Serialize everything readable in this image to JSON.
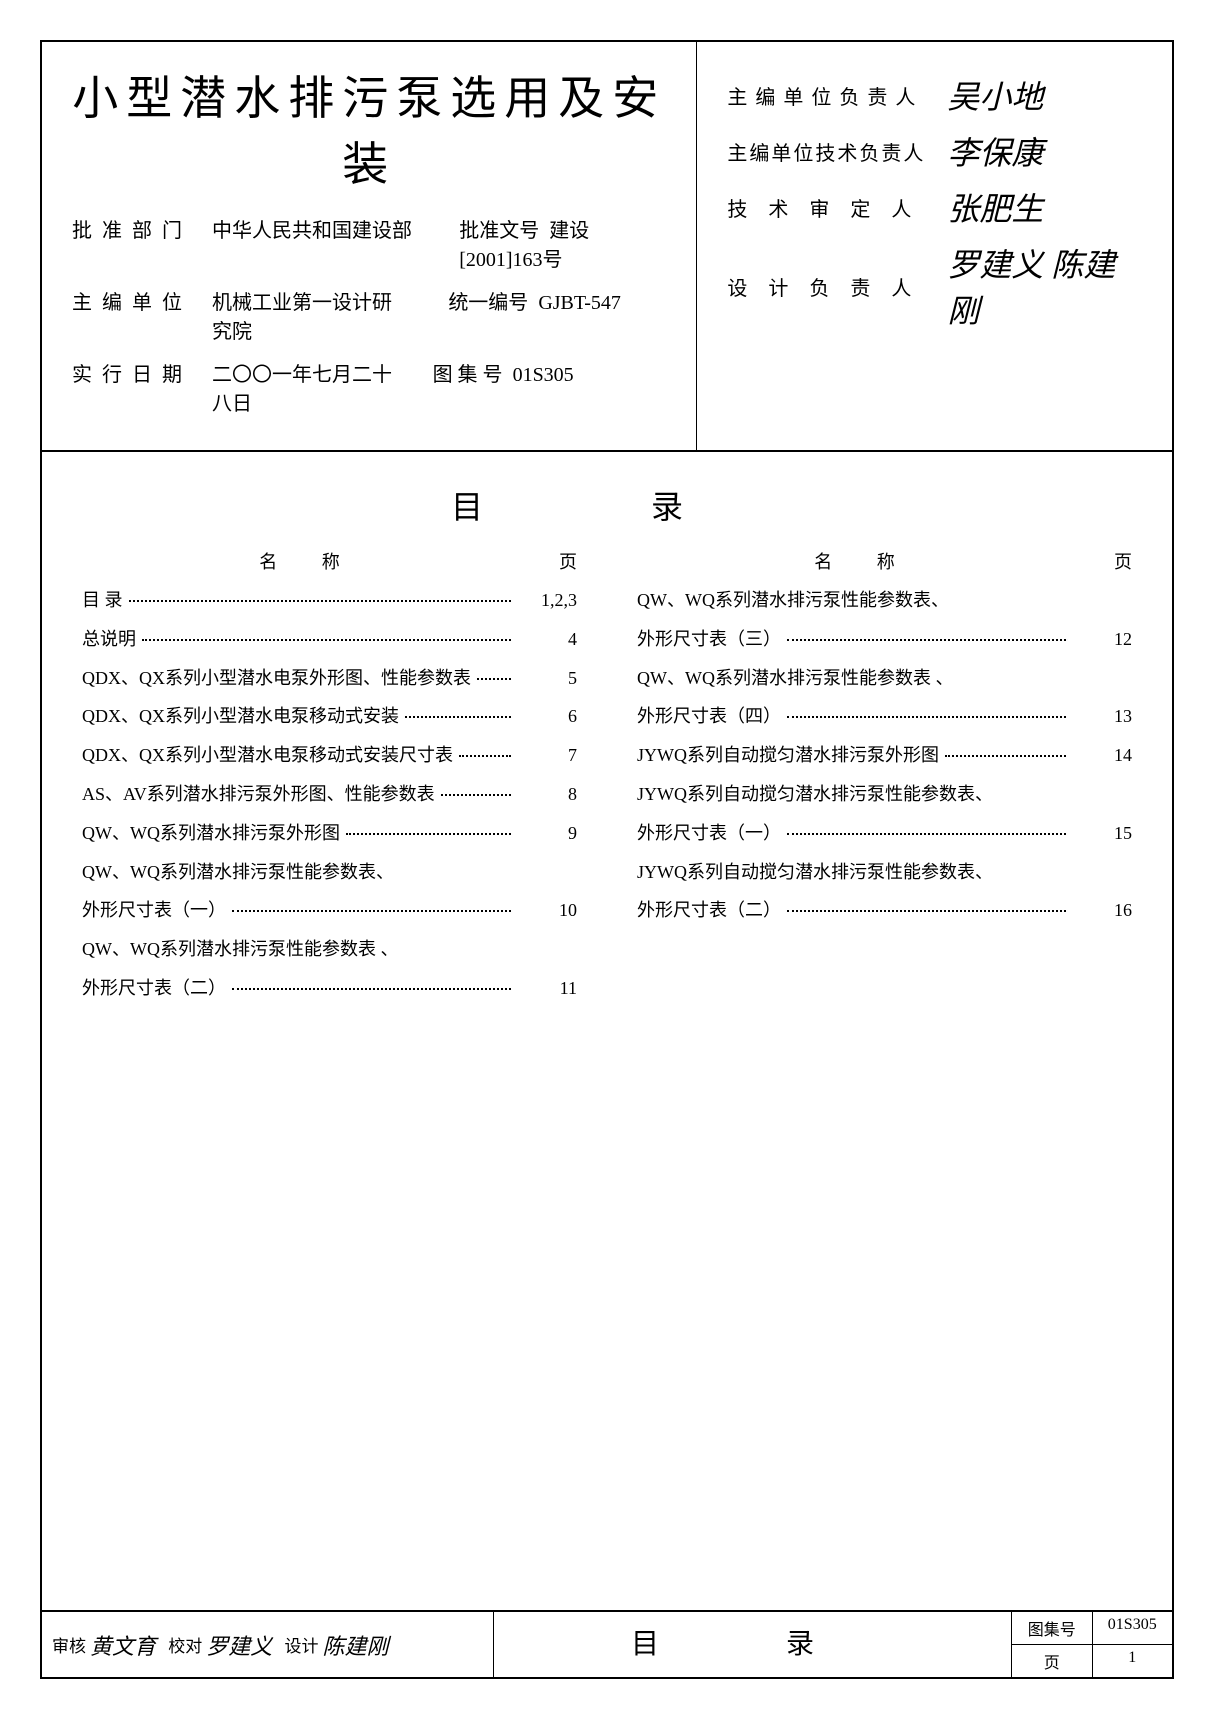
{
  "title": "小型潜水排污泵选用及安装",
  "meta": {
    "approve_dept_label": "批准部门",
    "approve_dept": "中华人民共和国建设部",
    "main_unit_label": "主编单位",
    "main_unit": "机械工业第一设计研究院",
    "exec_date_label": "实行日期",
    "exec_date": "二〇〇一年七月二十八日",
    "approve_no_label": "批准文号",
    "approve_no": "建设[2001]163号",
    "unified_no_label": "统一编号",
    "unified_no": "GJBT-547",
    "atlas_no_label": "图 集 号",
    "atlas_no": "01S305"
  },
  "sig": {
    "chief_unit_leader_label": "主编单位负责人",
    "chief_unit_leader": "吴小地",
    "chief_unit_tech_leader_label": "主编单位技术负责人",
    "chief_unit_tech_leader": "李保康",
    "tech_reviewer_label": "技 术 审 定 人",
    "tech_reviewer": "张肥生",
    "design_leader_label": "设 计 负 责 人",
    "design_leader": "罗建义  陈建刚"
  },
  "toc": {
    "heading": "目    录",
    "col_name_label": "名    称",
    "col_page_label": "页",
    "left": [
      {
        "name": "目 录",
        "page": "1,2,3"
      },
      {
        "name": "总说明",
        "page": "4"
      },
      {
        "name": "QDX、QX系列小型潜水电泵外形图、性能参数表",
        "page": "5"
      },
      {
        "name": "QDX、QX系列小型潜水电泵移动式安装",
        "page": "6"
      },
      {
        "name": "QDX、QX系列小型潜水电泵移动式安装尺寸表",
        "page": "7"
      },
      {
        "name": "AS、AV系列潜水排污泵外形图、性能参数表",
        "page": "8"
      },
      {
        "name": "QW、WQ系列潜水排污泵外形图",
        "page": "9"
      },
      {
        "name": "QW、WQ系列潜水排污泵性能参数表、",
        "page": ""
      },
      {
        "name": "外形尺寸表（一）",
        "page": "10"
      },
      {
        "name": "QW、WQ系列潜水排污泵性能参数表 、",
        "page": ""
      },
      {
        "name": "外形尺寸表（二）",
        "page": "11"
      }
    ],
    "right": [
      {
        "name": "QW、WQ系列潜水排污泵性能参数表、",
        "page": ""
      },
      {
        "name": "外形尺寸表（三）",
        "page": "12"
      },
      {
        "name": "QW、WQ系列潜水排污泵性能参数表 、",
        "page": ""
      },
      {
        "name": "外形尺寸表（四）",
        "page": "13"
      },
      {
        "name": "JYWQ系列自动搅匀潜水排污泵外形图",
        "page": "14"
      },
      {
        "name": "JYWQ系列自动搅匀潜水排污泵性能参数表、",
        "page": ""
      },
      {
        "name": "外形尺寸表（一）",
        "page": "15"
      },
      {
        "name": "JYWQ系列自动搅匀潜水排污泵性能参数表、",
        "page": ""
      },
      {
        "name": "外形尺寸表（二）",
        "page": "16"
      }
    ]
  },
  "footer": {
    "check_label": "审核",
    "check_name": "黄文育",
    "proof_label": "校对",
    "proof_name": "罗建义",
    "design_label": "设计",
    "design_name": "陈建刚",
    "center_title": "目    录",
    "atlas_label": "图集号",
    "atlas_value": "01S305",
    "page_label": "页",
    "page_value": "1"
  },
  "style": {
    "bg": "#ffffff",
    "fg": "#000000",
    "border_color": "#000000",
    "title_fontsize": 46,
    "body_fontsize": 20,
    "toc_fontsize": 18
  }
}
